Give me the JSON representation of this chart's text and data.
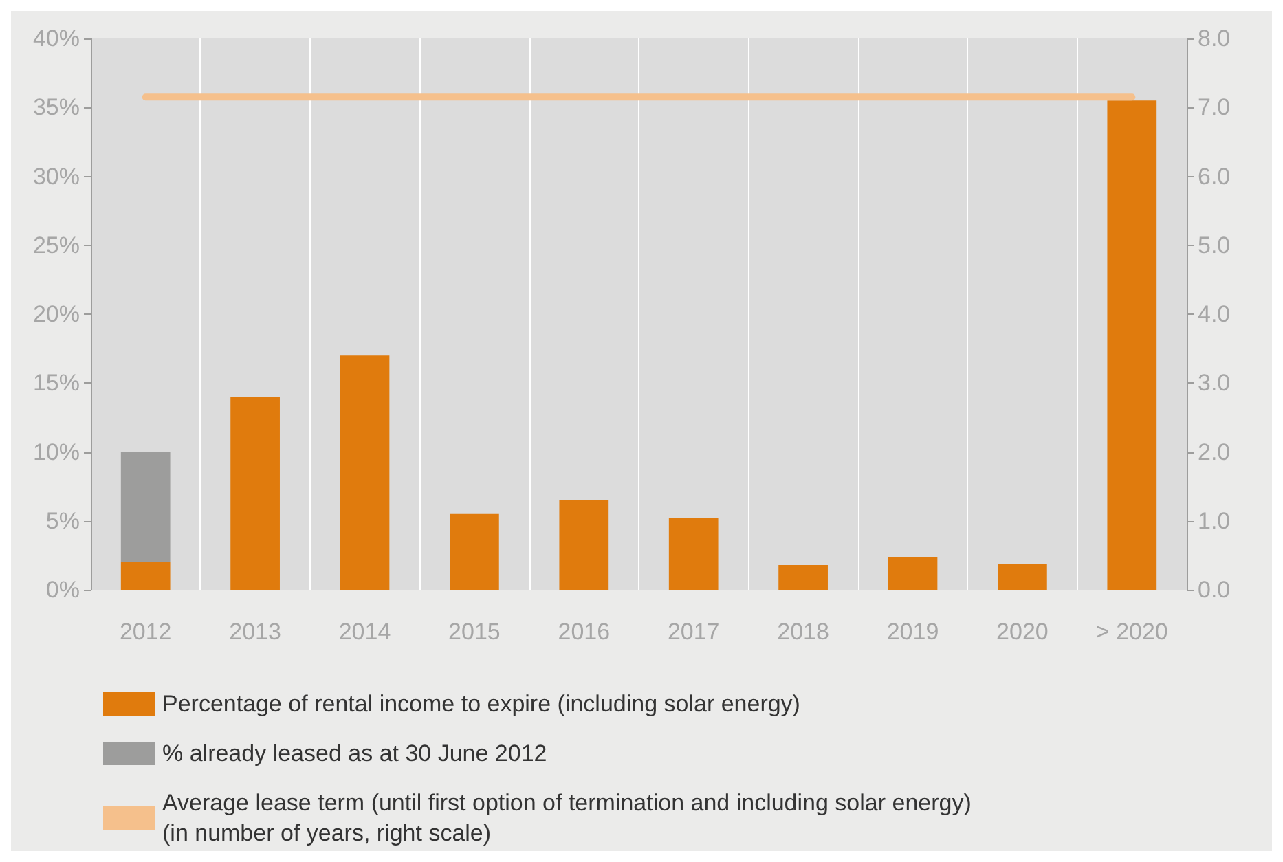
{
  "chart_data": {
    "type": "bar",
    "stacked": true,
    "categories": [
      "2012",
      "2013",
      "2014",
      "2015",
      "2016",
      "2017",
      "2018",
      "2019",
      "2020",
      "> 2020"
    ],
    "series": [
      {
        "name": "Percentage of rental income to expire (including solar energy)",
        "color": "#e07b0d",
        "values": [
          2,
          14,
          17,
          5.5,
          6.5,
          5.2,
          1.8,
          2.4,
          1.9,
          35.5
        ]
      },
      {
        "name": "% already leased as at 30 June 2012",
        "color": "#9d9d9c",
        "values": [
          8,
          null,
          null,
          null,
          null,
          null,
          null,
          null,
          null,
          null
        ]
      },
      {
        "name": "Average lease term (until first option of termination and including solar energy)\n(in number of years, right scale)",
        "type": "line",
        "axis": "y2",
        "color": "#f5c08c",
        "values": [
          7.15,
          7.15,
          7.15,
          7.15,
          7.15,
          7.15,
          7.15,
          7.15,
          7.15,
          7.15
        ]
      }
    ],
    "ylim": [
      0,
      40
    ],
    "yticks": [
      {
        "value": 0,
        "label": "0%"
      },
      {
        "value": 5,
        "label": "5%"
      },
      {
        "value": 10,
        "label": "10%"
      },
      {
        "value": 15,
        "label": "15%"
      },
      {
        "value": 20,
        "label": "20%"
      },
      {
        "value": 25,
        "label": "25%"
      },
      {
        "value": 30,
        "label": "30%"
      },
      {
        "value": 35,
        "label": "35%"
      },
      {
        "value": 40,
        "label": "40%"
      }
    ],
    "y2lim": [
      0,
      8
    ],
    "y2ticks": [
      {
        "value": 0,
        "label": "0.0"
      },
      {
        "value": 1,
        "label": "1.0"
      },
      {
        "value": 2,
        "label": "2.0"
      },
      {
        "value": 3,
        "label": "3.0"
      },
      {
        "value": 4,
        "label": "4.0"
      },
      {
        "value": 5,
        "label": "5.0"
      },
      {
        "value": 6,
        "label": "6.0"
      },
      {
        "value": 7,
        "label": "7.0"
      },
      {
        "value": 8,
        "label": "8.0"
      }
    ],
    "grid": "x",
    "legend": "bottom",
    "marker": "none"
  }
}
